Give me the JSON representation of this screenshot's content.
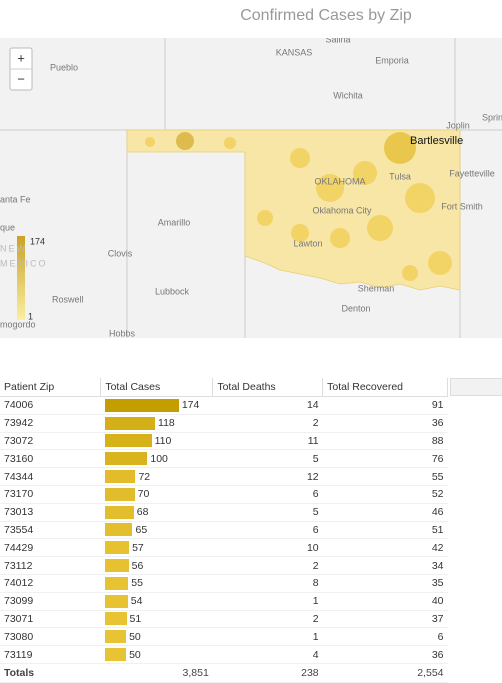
{
  "header": {
    "title": "Confirmed Cases by Zip"
  },
  "map": {
    "zoom_in": "+",
    "zoom_out": "−",
    "labels": [
      "Salina",
      "KANSAS",
      "Emporia",
      "Pueblo",
      "Wichita",
      "Joplin",
      "Sprin",
      "Bartlesville",
      "OKLAHOMA",
      "Tulsa",
      "Fayetteville",
      "anta Fe",
      "Oklahoma City",
      "Fort Smith",
      "Amarillo",
      "que",
      "Lawton",
      "Clovis",
      "NEW",
      "MEXICO",
      "Roswell",
      "Lubbock",
      "Sherman",
      "Denton",
      "mogordo",
      "Hobbs"
    ],
    "legend": {
      "max": 174,
      "min": 1
    }
  },
  "table": {
    "columns": [
      "Patient Zip",
      "Total Cases",
      "Total Deaths",
      "Total Recovered"
    ],
    "rows": [
      [
        "74006",
        174,
        14,
        91
      ],
      [
        "73942",
        118,
        2,
        36
      ],
      [
        "73072",
        110,
        11,
        88
      ],
      [
        "73160",
        100,
        5,
        76
      ],
      [
        "74344",
        72,
        12,
        55
      ],
      [
        "73170",
        70,
        6,
        52
      ],
      [
        "73013",
        68,
        5,
        46
      ],
      [
        "73554",
        65,
        6,
        51
      ],
      [
        "74429",
        57,
        10,
        42
      ],
      [
        "73112",
        56,
        2,
        34
      ],
      [
        "74012",
        55,
        8,
        35
      ],
      [
        "73099",
        54,
        1,
        40
      ],
      [
        "73071",
        51,
        2,
        37
      ],
      [
        "73080",
        50,
        1,
        6
      ],
      [
        "73119",
        50,
        4,
        36
      ]
    ],
    "totals": [
      "Totals",
      "3,851",
      "238",
      "2,554"
    ]
  }
}
